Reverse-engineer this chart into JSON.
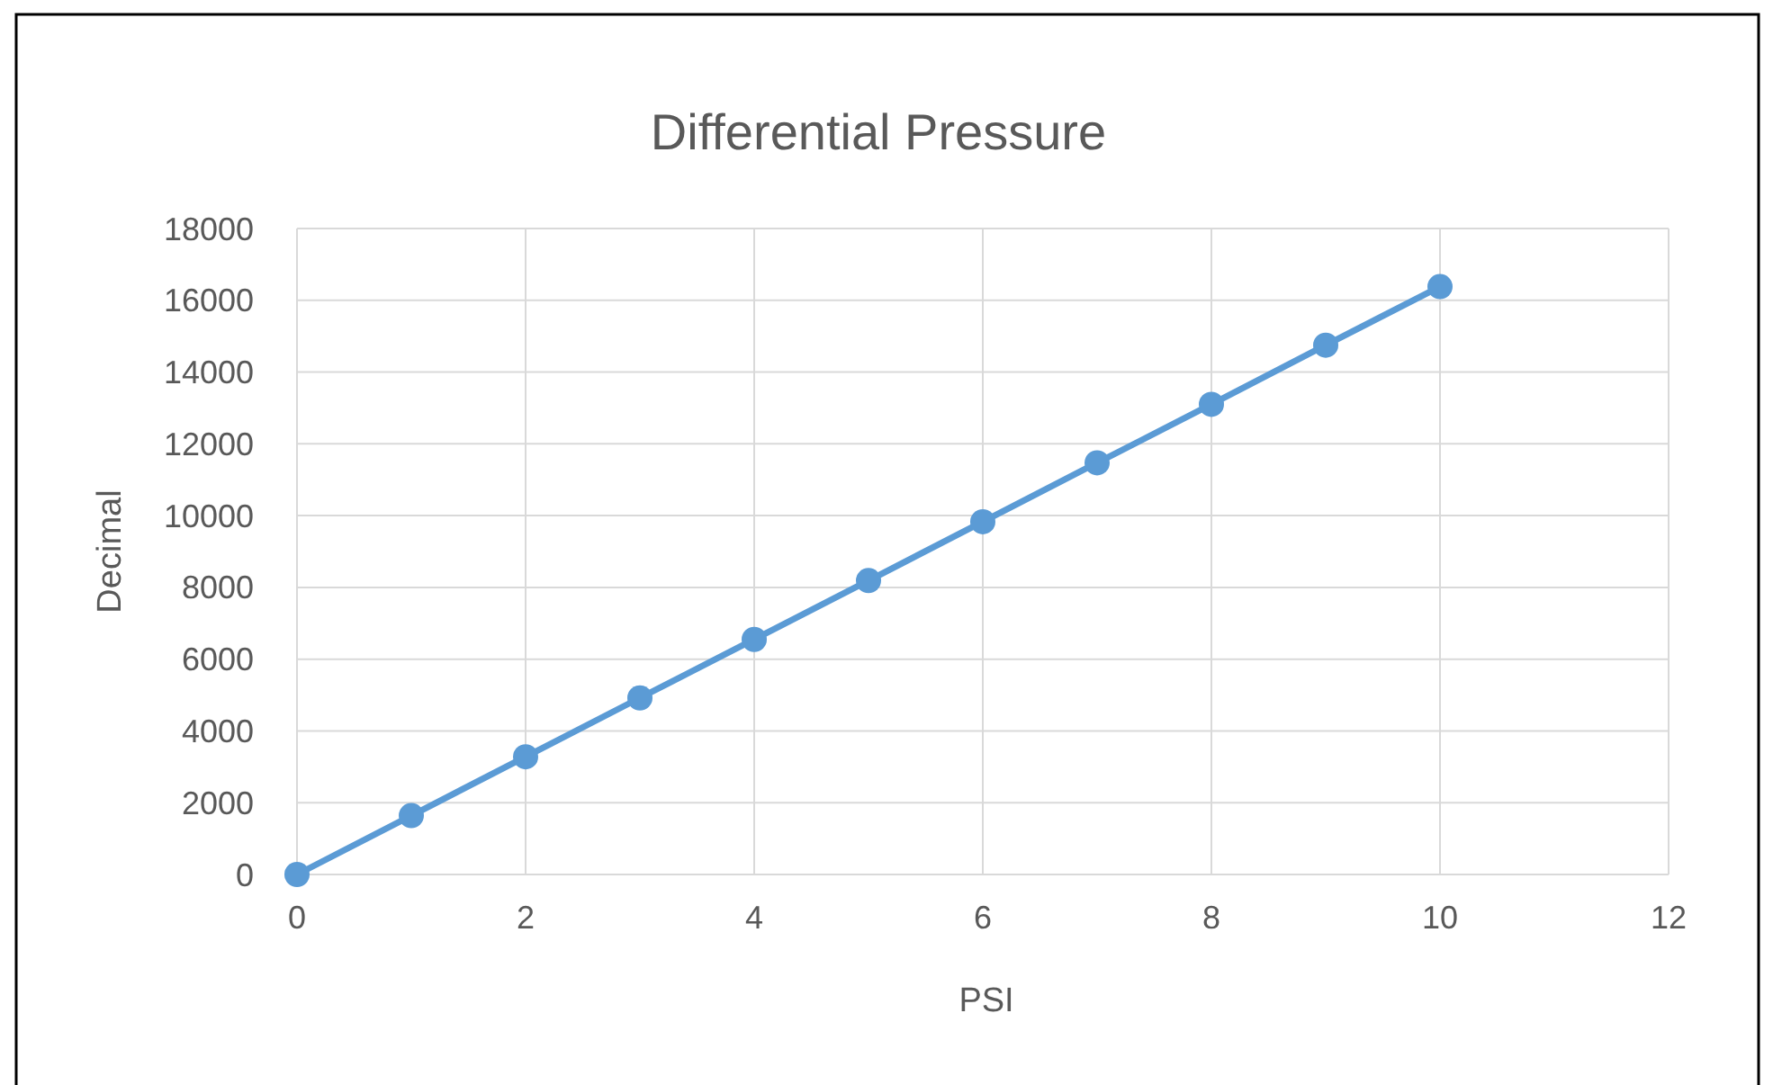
{
  "chart_data": {
    "type": "line",
    "title": "Differential Pressure",
    "xlabel": "PSI",
    "ylabel": "Decimal",
    "x": [
      0,
      1,
      2,
      3,
      4,
      5,
      6,
      7,
      8,
      9,
      10
    ],
    "series": [
      {
        "color": "#5b9bd5",
        "values": [
          0,
          1640,
          3280,
          4920,
          6550,
          8190,
          9830,
          11470,
          13100,
          14750,
          16380
        ]
      }
    ],
    "xlim": [
      0,
      12
    ],
    "xticks": [
      0,
      2,
      4,
      6,
      8,
      10,
      12
    ],
    "ylim": [
      0,
      18000
    ],
    "yticks": [
      0,
      2000,
      4000,
      6000,
      8000,
      10000,
      12000,
      14000,
      16000,
      18000
    ],
    "grid": true,
    "marker": "circle",
    "line_style": "solid"
  }
}
